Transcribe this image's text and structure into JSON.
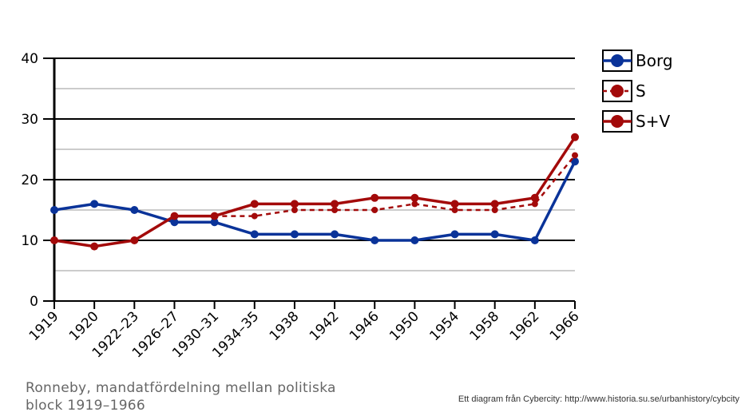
{
  "caption": "Ronneby, mandatfördelning mellan politiska block 1919–1966",
  "credit": "Ett diagram från Cybercity: http://www.historia.su.se/urbanhistory/cybcity",
  "chart_data": {
    "type": "line",
    "categories": [
      "1919",
      "1920",
      "1922–23",
      "1926–27",
      "1930–31",
      "1934–35",
      "1938",
      "1942",
      "1946",
      "1950",
      "1954",
      "1958",
      "1962",
      "1966"
    ],
    "ylim": [
      0,
      40
    ],
    "yticks": [
      0,
      10,
      20,
      30,
      40
    ],
    "grid": true,
    "legend_position": "top-right",
    "series": [
      {
        "name": "Borg",
        "color": "#0a3399",
        "dashed": false,
        "values": [
          15,
          16,
          15,
          13,
          13,
          11,
          11,
          11,
          10,
          10,
          11,
          11,
          10,
          23
        ]
      },
      {
        "name": "S",
        "color": "#a30a0a",
        "dashed": true,
        "values": [
          10,
          9,
          10,
          14,
          14,
          14,
          15,
          15,
          15,
          16,
          15,
          15,
          16,
          24
        ]
      },
      {
        "name": "S+V",
        "color": "#a30a0a",
        "dashed": false,
        "values": [
          10,
          9,
          10,
          14,
          14,
          16,
          16,
          16,
          17,
          17,
          16,
          16,
          17,
          27
        ]
      }
    ]
  }
}
